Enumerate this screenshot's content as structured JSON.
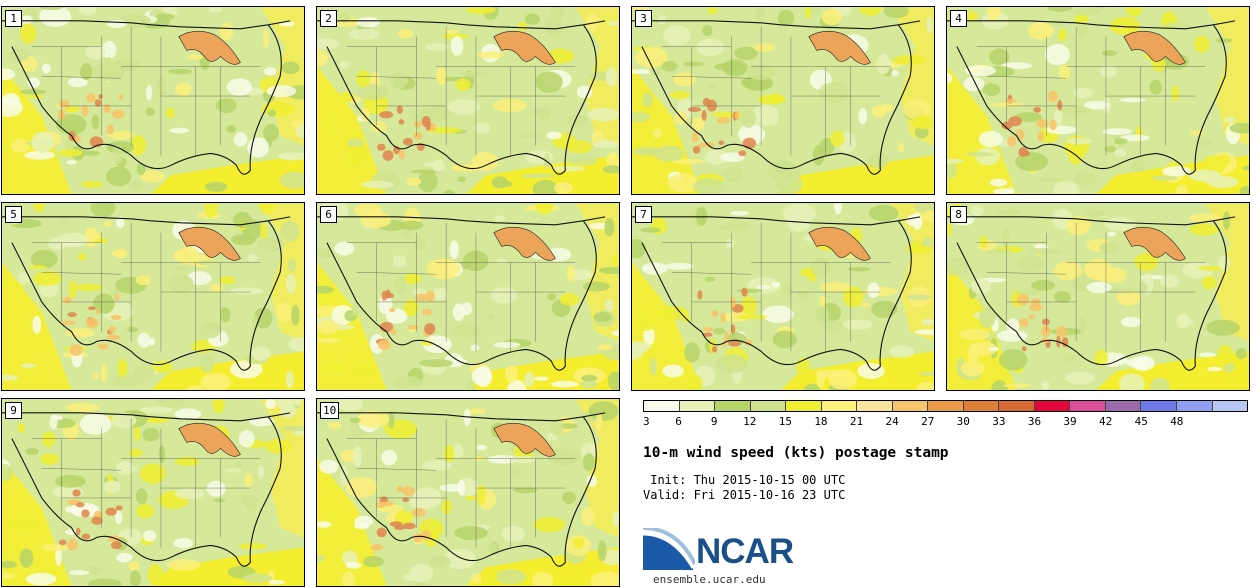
{
  "panels": [
    {
      "label": "1"
    },
    {
      "label": "2"
    },
    {
      "label": "3"
    },
    {
      "label": "4"
    },
    {
      "label": "5"
    },
    {
      "label": "6"
    },
    {
      "label": "7"
    },
    {
      "label": "8"
    },
    {
      "label": "9"
    },
    {
      "label": "10"
    }
  ],
  "colorbar": {
    "ticks": [
      "3",
      "6",
      "9",
      "12",
      "15",
      "18",
      "21",
      "24",
      "27",
      "30",
      "33",
      "36",
      "39",
      "42",
      "45",
      "48"
    ],
    "colors": [
      "#f8fbe8",
      "#e6f1b8",
      "#b5d46a",
      "#cfe38f",
      "#f0ee30",
      "#fbf07a",
      "#fbe4a0",
      "#f6c46a",
      "#ea9a48",
      "#e07f3a",
      "#d86a36",
      "#e3073d",
      "#d94f9a",
      "#9a6cae",
      "#6f79e8",
      "#8f9ef0",
      "#b6c7f4"
    ]
  },
  "title": "10-m wind speed (kts) postage stamp",
  "init": " Init: Thu 2015-10-15 00 UTC",
  "valid": "Valid: Fri 2015-10-16 23 UTC",
  "logo": {
    "name": "NCAR",
    "url": "ensemble.ucar.edu"
  }
}
